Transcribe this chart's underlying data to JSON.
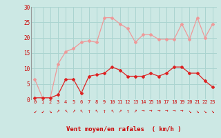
{
  "hours": [
    0,
    1,
    2,
    3,
    4,
    5,
    6,
    7,
    8,
    9,
    10,
    11,
    12,
    13,
    14,
    15,
    16,
    17,
    18,
    19,
    20,
    21,
    22,
    23
  ],
  "vent_moyen": [
    0.5,
    0.5,
    0.5,
    1.5,
    6.5,
    6.5,
    2,
    7.5,
    8,
    8.5,
    10.5,
    9.5,
    7.5,
    7.5,
    7.5,
    8.5,
    7.5,
    8.5,
    10.5,
    10.5,
    8.5,
    8.5,
    6,
    4
  ],
  "rafales": [
    6.5,
    0.5,
    0.5,
    11.5,
    15.5,
    16.5,
    18.5,
    19,
    18.5,
    26.5,
    26.5,
    24.5,
    23,
    18.5,
    21,
    21,
    19.5,
    19.5,
    19.5,
    24.5,
    19.5,
    26.5,
    20,
    24.5
  ],
  "wind_arrows": [
    "↙",
    "↙",
    "↘",
    "↗",
    "↖",
    "↗",
    "↖",
    "↑",
    "↖",
    "↑",
    "↖",
    "↗",
    "↑",
    "↗",
    "→",
    "→",
    "→",
    "→",
    "→",
    "→",
    "↘",
    "↘",
    "↘",
    "↘"
  ],
  "bg_color": "#cce8e4",
  "grid_color": "#aad4d0",
  "line_color_moyen": "#dd2222",
  "line_color_rafales": "#ee9999",
  "xlabel": "Vent moyen/en rafales  ( km/h )",
  "ylabel_ticks": [
    0,
    5,
    10,
    15,
    20,
    25,
    30
  ],
  "ylim": [
    0,
    30
  ],
  "xlim": [
    -0.5,
    23.5
  ]
}
